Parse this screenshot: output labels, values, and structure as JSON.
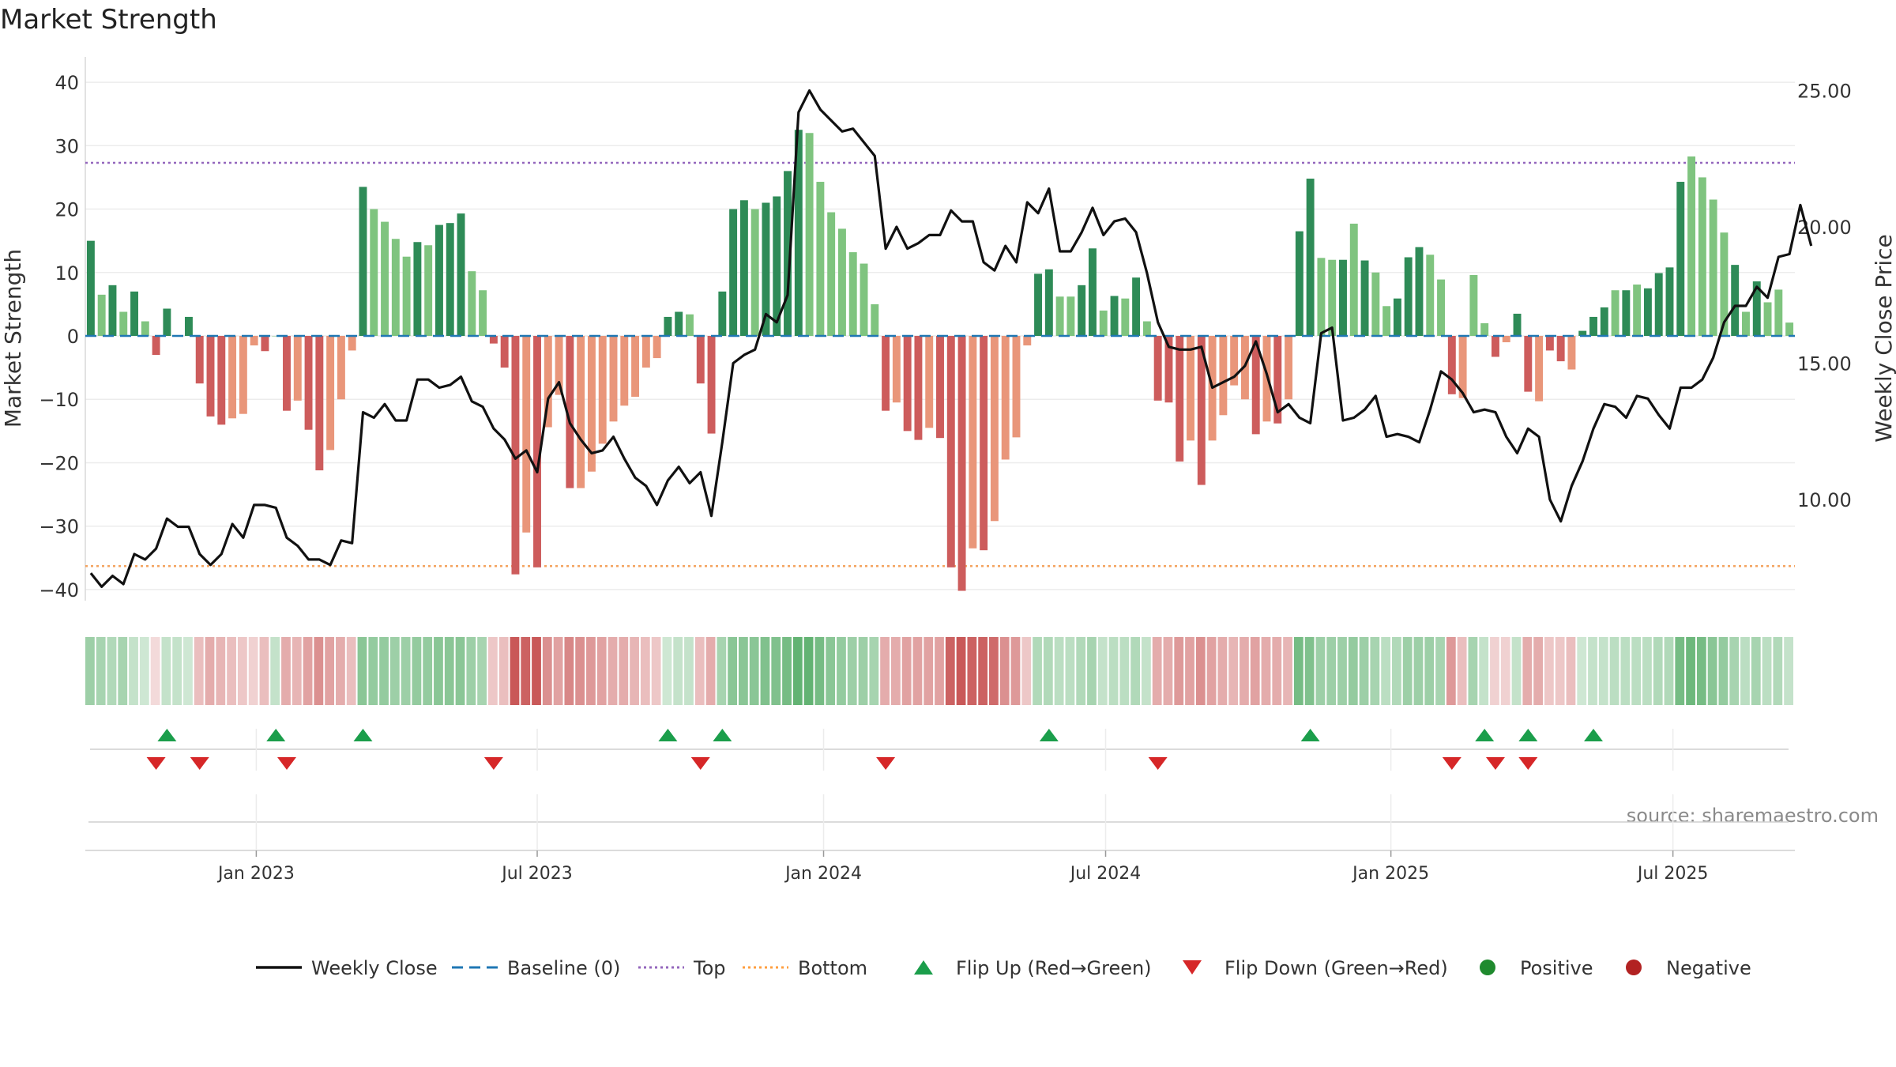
{
  "chart_data": {
    "type": "bar",
    "title": "Market Strength",
    "ylabel": "Market Strength",
    "y2label": "Weekly Close Price",
    "ylim": [
      -43,
      43
    ],
    "y2lim": [
      6.0,
      26.0
    ],
    "yticks": [
      "40",
      "30",
      "20",
      "10",
      "0",
      "−10",
      "−20",
      "−30",
      "−40"
    ],
    "yticks_values": [
      40,
      30,
      20,
      10,
      0,
      -10,
      -20,
      -30,
      -40
    ],
    "y2ticks": [
      "25.00",
      "20.00",
      "15.00",
      "10.00"
    ],
    "y2ticks_values": [
      25,
      20,
      15,
      10
    ],
    "x_ticks": [
      "Jan 2023",
      "Jul 2023",
      "Jan 2024",
      "Jul 2024",
      "Jan 2025",
      "Jul 2025"
    ],
    "x_ticks_week_index": [
      15.2,
      41,
      67.3,
      93.2,
      119.4,
      145.3
    ],
    "top_level": 27.3,
    "bottom_level": -36.3,
    "source": "source: sharemaestro.com",
    "legend": [
      {
        "label": "Weekly Close",
        "kind": "line",
        "color": "#111111"
      },
      {
        "label": "Baseline (0)",
        "kind": "dash",
        "color": "#1f77b4"
      },
      {
        "label": "Top",
        "kind": "dot",
        "color": "#9467bd"
      },
      {
        "label": "Bottom",
        "kind": "dot",
        "color": "#ff9f40"
      },
      {
        "label": "Flip Up (Red→Green)",
        "kind": "tri-up",
        "color": "#1b9e4b"
      },
      {
        "label": "Flip Down (Green→Red)",
        "kind": "tri-down",
        "color": "#d62728"
      },
      {
        "label": "Positive",
        "kind": "dot-fill",
        "color": "#1f8a2e"
      },
      {
        "label": "Negative",
        "kind": "dot-fill",
        "color": "#b22222"
      }
    ],
    "colors": {
      "pos_strong": "#2e8b57",
      "pos_light": "#7fc47f",
      "neg_strong": "#cd5c5c",
      "neg_light": "#e9967a",
      "line": "#111111",
      "baseline": "#1f77b4",
      "top": "#9467bd",
      "bottom": "#f4a460"
    },
    "series": [
      {
        "name": "Market Strength",
        "values": [
          15,
          6.5,
          8,
          3.8,
          7,
          2.3,
          -3,
          4.3,
          0,
          3,
          -7.5,
          -12.7,
          -14,
          -13,
          -12.3,
          -1.5,
          -2.4,
          0,
          -11.8,
          -10.2,
          -14.8,
          -21.2,
          -18,
          -10,
          -2.3,
          23.5,
          20,
          18,
          15.3,
          12.5,
          14.8,
          14.3,
          17.5,
          17.8,
          19.3,
          10.2,
          7.2,
          -1.2,
          -5,
          -37.6,
          -31,
          -36.5,
          -14.4,
          -9.3,
          -24,
          -24,
          -21.4,
          -17,
          -13.5,
          -11,
          -9.6,
          -5,
          -3.5,
          3,
          3.8,
          3.4,
          -7.5,
          -15.4,
          7,
          20,
          21.4,
          20,
          21,
          22,
          26,
          32.5,
          32,
          24.3,
          19.5,
          16.9,
          13.2,
          11.4,
          5,
          -11.8,
          -10.5,
          -15,
          -16.4,
          -14.5,
          -16.1,
          -36.5,
          -40.2,
          -33.5,
          -33.8,
          -29.2,
          -19.5,
          -16,
          -1.5,
          9.8,
          10.5,
          6.2,
          6.2,
          8,
          13.8,
          4,
          6.3,
          5.9,
          9.2,
          2.3,
          -10.2,
          -10.5,
          -19.8,
          -16.5,
          -23.5,
          -16.5,
          -12.5,
          -7.8,
          -10,
          -15.5,
          -13.5,
          -13.8,
          -10,
          16.5,
          24.8,
          12.3,
          12,
          12,
          17.7,
          11.9,
          10,
          4.7,
          5.9,
          12.4,
          14,
          12.8,
          8.9,
          -9.2,
          -9.8,
          9.6,
          2,
          -3.3,
          -1,
          3.5,
          -8.8,
          -10.3,
          -2.3,
          -4,
          -5.3,
          0.8,
          3,
          4.5,
          7.2,
          7.2,
          8.1,
          7.5,
          9.9,
          10.8,
          24.3,
          28.3,
          25,
          21.5,
          16.3,
          11.2,
          3.8,
          8.6,
          5.3,
          7.3,
          2.1
        ],
        "strong": [
          1,
          0,
          1,
          0,
          1,
          0,
          1,
          1,
          0,
          1,
          1,
          1,
          1,
          0,
          0,
          0,
          1,
          0,
          1,
          0,
          1,
          1,
          0,
          0,
          0,
          1,
          0,
          0,
          0,
          0,
          1,
          0,
          1,
          1,
          1,
          0,
          0,
          1,
          1,
          1,
          0,
          1,
          0,
          0,
          1,
          0,
          0,
          0,
          0,
          0,
          0,
          0,
          0,
          1,
          1,
          0,
          1,
          1,
          1,
          1,
          1,
          0,
          1,
          1,
          1,
          1,
          0,
          0,
          0,
          0,
          0,
          0,
          0,
          1,
          0,
          1,
          1,
          0,
          1,
          1,
          1,
          0,
          1,
          0,
          0,
          0,
          0,
          1,
          1,
          0,
          0,
          1,
          1,
          0,
          1,
          0,
          1,
          0,
          1,
          1,
          1,
          0,
          1,
          0,
          0,
          0,
          0,
          1,
          0,
          1,
          0,
          1,
          1,
          0,
          0,
          1,
          0,
          1,
          0,
          0,
          1,
          1,
          1,
          0,
          0,
          1,
          0,
          0,
          0,
          1,
          0,
          1,
          1,
          0,
          1,
          1,
          0,
          1,
          1,
          1,
          0,
          1,
          0,
          1,
          1,
          1,
          1,
          0,
          0,
          0,
          0,
          1,
          0,
          1,
          0
        ],
        "bands": [
          0.5,
          0.45,
          0.4,
          0.45,
          0.3,
          0.25,
          0.2,
          0.3,
          0.3,
          0.25,
          0.35,
          0.45,
          0.4,
          0.35,
          0.3,
          0.25,
          0.35,
          0.3,
          0.45,
          0.4,
          0.5,
          0.6,
          0.5,
          0.45,
          0.35,
          0.6,
          0.55,
          0.55,
          0.5,
          0.5,
          0.55,
          0.55,
          0.6,
          0.6,
          0.6,
          0.5,
          0.45,
          0.3,
          0.35,
          0.9,
          0.85,
          0.9,
          0.6,
          0.5,
          0.65,
          0.6,
          0.55,
          0.5,
          0.45,
          0.45,
          0.4,
          0.35,
          0.3,
          0.25,
          0.3,
          0.3,
          0.35,
          0.45,
          0.45,
          0.6,
          0.6,
          0.6,
          0.65,
          0.65,
          0.7,
          0.8,
          0.8,
          0.7,
          0.6,
          0.55,
          0.5,
          0.5,
          0.45,
          0.45,
          0.45,
          0.5,
          0.5,
          0.5,
          0.5,
          0.85,
          0.9,
          0.85,
          0.85,
          0.8,
          0.6,
          0.55,
          0.3,
          0.4,
          0.4,
          0.35,
          0.35,
          0.4,
          0.45,
          0.3,
          0.35,
          0.35,
          0.4,
          0.3,
          0.45,
          0.45,
          0.55,
          0.5,
          0.6,
          0.5,
          0.45,
          0.4,
          0.45,
          0.5,
          0.45,
          0.45,
          0.4,
          0.7,
          0.65,
          0.5,
          0.5,
          0.5,
          0.55,
          0.5,
          0.45,
          0.35,
          0.4,
          0.5,
          0.5,
          0.5,
          0.45,
          0.55,
          0.35,
          0.45,
          0.3,
          0.25,
          0.25,
          0.3,
          0.45,
          0.45,
          0.3,
          0.3,
          0.35,
          0.25,
          0.3,
          0.3,
          0.35,
          0.35,
          0.35,
          0.35,
          0.4,
          0.4,
          0.7,
          0.75,
          0.7,
          0.6,
          0.55,
          0.45,
          0.35,
          0.45,
          0.35,
          0.4,
          0.3
        ]
      },
      {
        "name": "Weekly Close",
        "values": [
          7.3,
          6.8,
          7.2,
          6.9,
          8.0,
          7.8,
          8.2,
          9.3,
          9.0,
          9.0,
          8.0,
          7.6,
          8.0,
          9.1,
          8.6,
          9.8,
          9.8,
          9.7,
          8.6,
          8.3,
          7.8,
          7.8,
          7.6,
          8.5,
          8.4,
          13.2,
          13.0,
          13.5,
          12.9,
          12.9,
          14.4,
          14.4,
          14.1,
          14.2,
          14.5,
          13.6,
          13.4,
          12.6,
          12.2,
          11.5,
          11.8,
          11.0,
          13.7,
          14.3,
          12.8,
          12.2,
          11.7,
          11.8,
          12.3,
          11.5,
          10.8,
          10.5,
          9.8,
          10.7,
          11.2,
          10.6,
          11.0,
          9.4,
          12.1,
          15.0,
          15.3,
          15.5,
          16.8,
          16.5,
          17.5,
          24.2,
          25.0,
          24.3,
          23.9,
          23.5,
          23.6,
          23.1,
          22.6,
          19.2,
          20.0,
          19.2,
          19.4,
          19.7,
          19.7,
          20.6,
          20.2,
          20.2,
          18.7,
          18.4,
          19.3,
          18.7,
          20.9,
          20.5,
          21.4,
          19.1,
          19.1,
          19.8,
          20.7,
          19.7,
          20.2,
          20.3,
          19.8,
          18.3,
          16.5,
          15.6,
          15.5,
          15.5,
          15.6,
          14.1,
          14.3,
          14.5,
          14.9,
          15.8,
          14.6,
          13.2,
          13.5,
          13.0,
          12.8,
          16.1,
          16.3,
          12.9,
          13.0,
          13.3,
          13.8,
          12.3,
          12.4,
          12.3,
          12.1,
          13.3,
          14.7,
          14.4,
          13.9,
          13.2,
          13.3,
          13.2,
          12.3,
          11.7,
          12.6,
          12.3,
          10.0,
          9.2,
          10.5,
          11.4,
          12.6,
          13.5,
          13.4,
          13.0,
          13.8,
          13.7,
          13.1,
          12.6,
          14.1,
          14.1,
          14.4,
          15.2,
          16.5,
          17.1,
          17.1,
          17.8,
          17.4,
          18.9,
          19.0,
          20.8,
          19.3
        ]
      }
    ],
    "flip_up_week_index": [
      7,
      17,
      25,
      53,
      58,
      88,
      112,
      128,
      132,
      138
    ],
    "flip_down_week_index": [
      6,
      10,
      18,
      37,
      56,
      73,
      98,
      125,
      129,
      132
    ]
  }
}
